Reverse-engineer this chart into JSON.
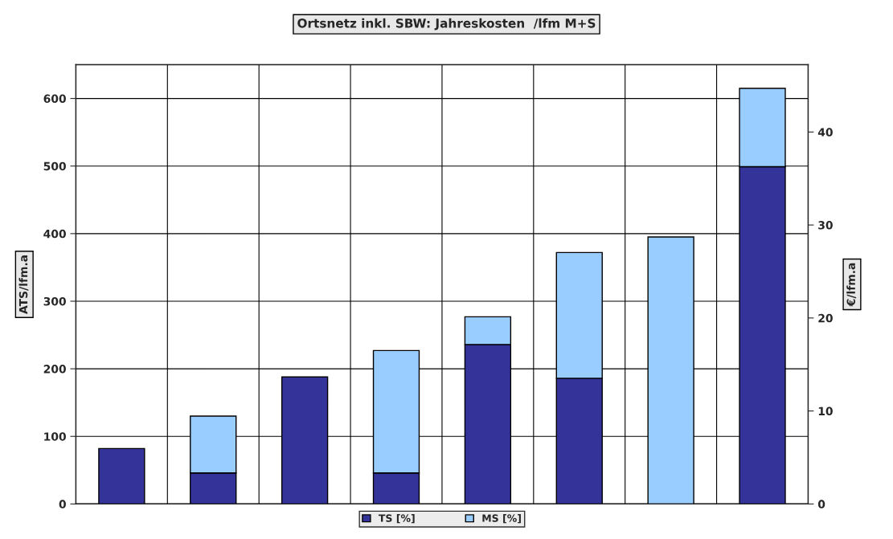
{
  "chart_data": {
    "type": "bar",
    "title": "Ortsnetz inkl. SBW: Jahreskosten  /lfm M+S",
    "ylabel": "ATS/lfm.a",
    "y2label": "€/lfm.a",
    "categories": [
      null,
      null,
      null,
      null,
      null,
      null,
      null,
      null
    ],
    "stacked": true,
    "series": [
      {
        "name": "TS [%]",
        "color": "#333399",
        "values": [
          82,
          46,
          188,
          46,
          236,
          186,
          null,
          499
        ]
      },
      {
        "name": "MS [%]",
        "color": "#99ccff",
        "values": [
          null,
          84,
          null,
          181,
          41,
          186,
          395,
          116
        ]
      }
    ],
    "ylim": [
      0,
      650
    ],
    "yticks": [
      0,
      100,
      200,
      300,
      400,
      500,
      600
    ],
    "y2lim": [
      0,
      47.24
    ],
    "y2ticks": [
      0,
      10,
      20,
      30,
      40
    ],
    "grid": true,
    "legend": "bottom"
  }
}
